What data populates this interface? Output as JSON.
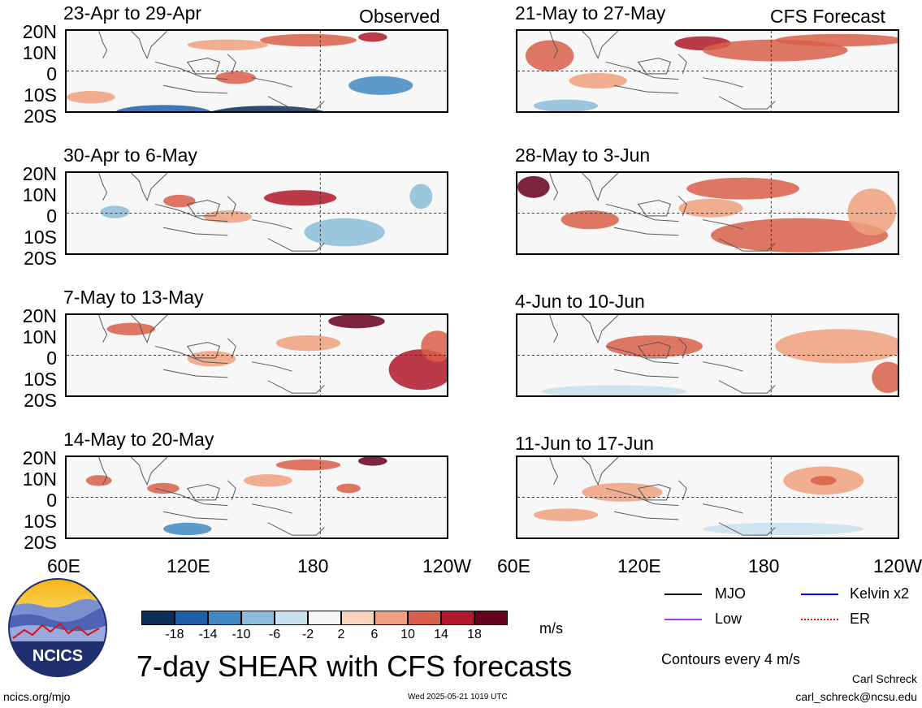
{
  "header": {
    "observed_label": "Observed",
    "forecast_label": "CFS Forecast"
  },
  "panels": [
    {
      "title": "23-Apr to 29-Apr",
      "column": "observed"
    },
    {
      "title": "30-Apr to 6-May",
      "column": "observed"
    },
    {
      "title": "7-May to 13-May",
      "column": "observed"
    },
    {
      "title": "14-May to 20-May",
      "column": "observed"
    },
    {
      "title": "21-May to 27-May",
      "column": "forecast"
    },
    {
      "title": "28-May to 3-Jun",
      "column": "forecast"
    },
    {
      "title": "4-Jun to 10-Jun",
      "column": "forecast"
    },
    {
      "title": "11-Jun to 17-Jun",
      "column": "forecast"
    }
  ],
  "axes": {
    "lat_labels": [
      "20N",
      "10N",
      "0",
      "10S",
      "20S"
    ],
    "lon_labels": [
      "60E",
      "120E",
      "180",
      "120W"
    ]
  },
  "colorbar": {
    "labels": [
      "-18",
      "-14",
      "-10",
      "-6",
      "-2",
      "2",
      "6",
      "10",
      "14",
      "18"
    ],
    "colors": [
      "#0b2e59",
      "#1f5fa8",
      "#3f8ac2",
      "#8cbcd9",
      "#c9e1ef",
      "#f7f7f7",
      "#f9d3bd",
      "#f0a07d",
      "#d95f4a",
      "#b2182b",
      "#67001f"
    ],
    "unit": "m/s"
  },
  "legend": {
    "items": [
      {
        "label": "MJO",
        "color": "#000000"
      },
      {
        "label": "Kelvin x2",
        "color": "#0000ff"
      },
      {
        "label": "Low",
        "color": "#a040e0"
      },
      {
        "label": "ER",
        "color": "#ff0000"
      }
    ],
    "contours_note": "Contours every 4 m/s"
  },
  "footer": {
    "main_title": "7-day SHEAR with CFS forecasts",
    "logo_text": "NCICS",
    "url": "ncics.org/mjo",
    "timestamp": "Wed 2025-05-21 1019 UTC",
    "author": "Carl Schreck",
    "email": "carl_schreck@ncsu.edu"
  }
}
